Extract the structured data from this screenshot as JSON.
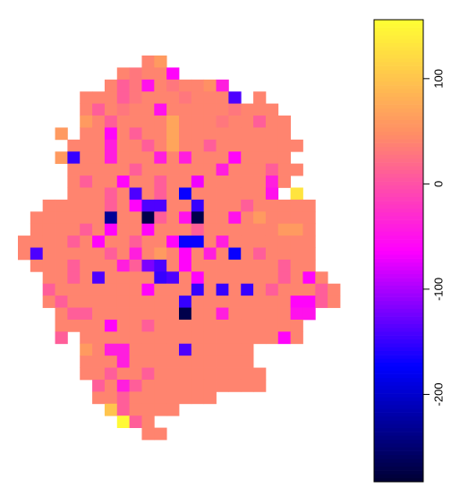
{
  "chart_data": {
    "type": "heatmap",
    "zlim": [
      -283,
      156
    ],
    "zticks": [
      -200,
      -100,
      0,
      100
    ],
    "colors": [
      "#000033",
      "#0000ff",
      "#ff00ff",
      "#ff8c66",
      "#ffff33"
    ],
    "z": [
      [
        null,
        null,
        null,
        null,
        null,
        null,
        null,
        null,
        null,
        null,
        40,
        60,
        null,
        null,
        null,
        null,
        null,
        null,
        null,
        null,
        null,
        null,
        null,
        null,
        null,
        null
      ],
      [
        null,
        null,
        null,
        null,
        null,
        null,
        null,
        null,
        40,
        30,
        40,
        40,
        -60,
        null,
        null,
        null,
        null,
        null,
        null,
        null,
        null,
        null,
        null,
        null,
        null,
        null
      ],
      [
        null,
        null,
        null,
        null,
        null,
        null,
        null,
        40,
        10,
        30,
        -50,
        40,
        30,
        40,
        40,
        50,
        -40,
        null,
        null,
        null,
        null,
        null,
        null,
        null,
        null,
        null
      ],
      [
        null,
        null,
        null,
        null,
        null,
        40,
        40,
        40,
        10,
        30,
        40,
        40,
        40,
        30,
        40,
        40,
        40,
        -140,
        null,
        40,
        null,
        null,
        null,
        null,
        null,
        null
      ],
      [
        null,
        null,
        null,
        null,
        null,
        40,
        10,
        40,
        30,
        40,
        40,
        -50,
        40,
        40,
        40,
        40,
        40,
        30,
        40,
        40,
        40,
        null,
        null,
        null,
        null,
        null
      ],
      [
        null,
        null,
        null,
        null,
        null,
        60,
        40,
        10,
        40,
        40,
        40,
        40,
        70,
        40,
        40,
        40,
        30,
        40,
        40,
        10,
        40,
        40,
        null,
        null,
        null,
        null
      ],
      [
        null,
        null,
        null,
        60,
        null,
        40,
        40,
        -60,
        40,
        10,
        40,
        40,
        70,
        40,
        40,
        40,
        40,
        40,
        40,
        40,
        40,
        40,
        null,
        null,
        null,
        null
      ],
      [
        null,
        null,
        null,
        null,
        40,
        40,
        40,
        -40,
        40,
        40,
        10,
        40,
        70,
        40,
        40,
        10,
        40,
        40,
        40,
        40,
        40,
        40,
        40,
        null,
        null,
        null
      ],
      [
        null,
        null,
        null,
        60,
        -150,
        40,
        40,
        -40,
        40,
        40,
        40,
        -40,
        40,
        -40,
        40,
        40,
        40,
        -60,
        40,
        40,
        40,
        40,
        null,
        null,
        null,
        null
      ],
      [
        null,
        null,
        null,
        null,
        40,
        40,
        40,
        40,
        40,
        10,
        40,
        40,
        40,
        40,
        40,
        40,
        -40,
        40,
        40,
        40,
        10,
        40,
        40,
        null,
        null,
        null
      ],
      [
        null,
        null,
        null,
        null,
        40,
        10,
        40,
        40,
        -60,
        40,
        40,
        10,
        40,
        40,
        -70,
        40,
        40,
        40,
        40,
        40,
        -40,
        40,
        null,
        null,
        null,
        null
      ],
      [
        null,
        null,
        null,
        null,
        40,
        40,
        40,
        10,
        40,
        -140,
        40,
        10,
        40,
        -170,
        40,
        40,
        40,
        40,
        40,
        40,
        -50,
        null,
        130,
        null,
        null,
        null
      ],
      [
        null,
        null,
        40,
        40,
        40,
        40,
        40,
        10,
        40,
        -60,
        -140,
        -140,
        40,
        40,
        -150,
        40,
        40,
        40,
        10,
        40,
        40,
        40,
        40,
        40,
        null,
        null
      ],
      [
        null,
        40,
        40,
        40,
        40,
        40,
        40,
        -230,
        40,
        40,
        -270,
        10,
        40,
        -50,
        -270,
        40,
        40,
        -50,
        40,
        60,
        40,
        40,
        40,
        40,
        null,
        null
      ],
      [
        null,
        40,
        40,
        40,
        40,
        10,
        40,
        -60,
        40,
        40,
        -60,
        40,
        40,
        40,
        10,
        40,
        40,
        40,
        40,
        40,
        40,
        60,
        60,
        40,
        null,
        null
      ],
      [
        40,
        40,
        40,
        40,
        10,
        40,
        -60,
        40,
        40,
        10,
        40,
        40,
        -60,
        -170,
        -170,
        40,
        -40,
        40,
        40,
        40,
        40,
        40,
        40,
        40,
        null,
        null
      ],
      [
        40,
        -140,
        40,
        40,
        40,
        40,
        40,
        10,
        40,
        -40,
        40,
        60,
        40,
        -60,
        40,
        -40,
        40,
        -170,
        40,
        10,
        40,
        40,
        40,
        40,
        null,
        null
      ],
      [
        null,
        40,
        40,
        40,
        10,
        40,
        40,
        40,
        -40,
        10,
        -120,
        -140,
        40,
        -60,
        40,
        40,
        40,
        40,
        40,
        40,
        40,
        10,
        40,
        40,
        null,
        null
      ],
      [
        null,
        null,
        40,
        40,
        10,
        40,
        -140,
        40,
        40,
        40,
        40,
        -150,
        -140,
        40,
        -60,
        40,
        40,
        40,
        40,
        40,
        40,
        10,
        40,
        -60,
        40,
        null
      ],
      [
        null,
        null,
        10,
        40,
        40,
        40,
        40,
        40,
        40,
        40,
        -60,
        40,
        40,
        40,
        -150,
        40,
        -150,
        40,
        -150,
        40,
        10,
        40,
        40,
        40,
        10,
        40
      ],
      [
        null,
        null,
        40,
        10,
        40,
        40,
        40,
        40,
        40,
        40,
        40,
        40,
        40,
        -150,
        40,
        40,
        40,
        40,
        40,
        40,
        40,
        40,
        -60,
        -60,
        10,
        40
      ],
      [
        null,
        null,
        null,
        40,
        10,
        10,
        40,
        40,
        40,
        40,
        40,
        40,
        40,
        -270,
        40,
        40,
        -40,
        40,
        40,
        40,
        40,
        40,
        -50,
        -50,
        null,
        null
      ],
      [
        null,
        null,
        null,
        40,
        40,
        40,
        40,
        -60,
        40,
        40,
        10,
        40,
        40,
        40,
        40,
        40,
        40,
        40,
        40,
        40,
        40,
        40,
        40,
        null,
        null,
        null
      ],
      [
        null,
        null,
        null,
        10,
        null,
        40,
        40,
        40,
        40,
        40,
        40,
        40,
        40,
        40,
        40,
        40,
        40,
        40,
        40,
        40,
        40,
        -60,
        40,
        null,
        null,
        null
      ],
      [
        null,
        null,
        null,
        null,
        null,
        60,
        40,
        -40,
        -40,
        40,
        40,
        40,
        40,
        -140,
        40,
        40,
        40,
        40,
        40,
        null,
        null,
        null,
        null,
        null,
        null,
        null
      ],
      [
        null,
        null,
        null,
        null,
        null,
        40,
        40,
        40,
        -40,
        40,
        40,
        40,
        40,
        40,
        40,
        40,
        40,
        40,
        40,
        null,
        null,
        null,
        null,
        null,
        null,
        null
      ],
      [
        null,
        null,
        null,
        null,
        null,
        40,
        40,
        10,
        40,
        40,
        10,
        40,
        40,
        40,
        40,
        40,
        40,
        40,
        40,
        40,
        null,
        null,
        null,
        null,
        null,
        null
      ],
      [
        null,
        null,
        null,
        null,
        null,
        null,
        10,
        40,
        -40,
        10,
        40,
        40,
        40,
        40,
        40,
        40,
        40,
        40,
        40,
        40,
        null,
        null,
        null,
        null,
        null,
        null
      ],
      [
        null,
        null,
        null,
        null,
        null,
        null,
        40,
        40,
        10,
        40,
        40,
        40,
        40,
        40,
        40,
        40,
        null,
        null,
        null,
        null,
        null,
        null,
        null,
        null,
        null,
        null
      ],
      [
        null,
        null,
        null,
        null,
        null,
        null,
        null,
        100,
        10,
        40,
        40,
        40,
        40,
        null,
        null,
        null,
        null,
        null,
        null,
        null,
        null,
        null,
        null,
        null,
        null,
        null
      ],
      [
        null,
        null,
        null,
        null,
        null,
        null,
        null,
        null,
        150,
        10,
        40,
        null,
        null,
        null,
        null,
        null,
        null,
        null,
        null,
        null,
        null,
        null,
        null,
        null,
        null,
        null
      ],
      [
        null,
        null,
        null,
        null,
        null,
        null,
        null,
        null,
        null,
        null,
        40,
        40,
        null,
        null,
        null,
        null,
        null,
        null,
        null,
        null,
        null,
        null,
        null,
        null,
        null,
        null
      ]
    ]
  }
}
